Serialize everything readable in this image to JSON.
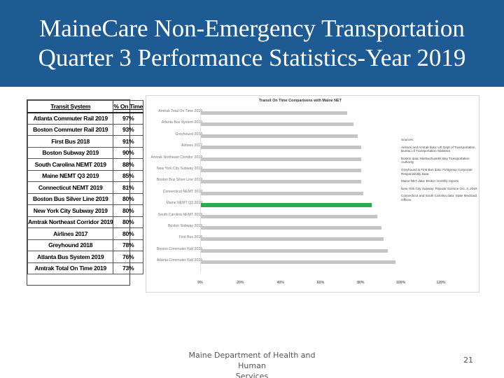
{
  "title": {
    "line1": "MaineCare Non-Emergency Transportation",
    "line2": "Quarter 3 Performance Statistics-Year 2019",
    "background_color": "#1e5b92"
  },
  "table": {
    "headers": [
      "Transit System",
      "% On Time"
    ],
    "rows": [
      {
        "system": "Atlanta Commuter Rail 2019",
        "pct": "97%"
      },
      {
        "system": "Boston Commuter Rail 2019",
        "pct": "93%"
      },
      {
        "system": "First Bus 2018",
        "pct": "91%"
      },
      {
        "system": "Boston Subway 2019",
        "pct": "90%"
      },
      {
        "system": "South Carolina NEMT 2019",
        "pct": "88%"
      },
      {
        "system": "Maine NEMT Q3 2019",
        "pct": "85%"
      },
      {
        "system": "Connecticut NEMT 2019",
        "pct": "81%"
      },
      {
        "system": "Boston Bus Silver Line 2019",
        "pct": "80%"
      },
      {
        "system": "New York City Subway 2019",
        "pct": "80%"
      },
      {
        "system": "Amtrak Northeast Corridor 2019",
        "pct": "80%"
      },
      {
        "system": "Airlines 2017",
        "pct": "80%"
      },
      {
        "system": "Greyhound 2018",
        "pct": "78%"
      },
      {
        "system": "Atlanta Bus System 2019",
        "pct": "76%"
      },
      {
        "system": "Amtrak Total On Time 2019",
        "pct": "73%"
      }
    ]
  },
  "chart_data": {
    "type": "bar",
    "orientation": "horizontal",
    "title": "Transit On Time Comparisons with Maine NET",
    "categories": [
      "Amtrak Total On Time 2019",
      "Atlanta Bus System 2019",
      "Greyhound 2018",
      "Airlines 2017",
      "Amtrak Northeast Corridor 2019",
      "New York City Subway 2019",
      "Boston Bus Silver Line 2019",
      "Connecticut NEMT 2019",
      "Maine NEMT Q3 2019",
      "South Carolina NEMT 2019",
      "Boston Subway 2019",
      "First Bus 2018",
      "Boston Commuter Rail 2019",
      "Atlanta Commuter Rail 2019"
    ],
    "values": [
      73,
      76,
      78,
      80,
      80,
      80,
      80,
      81,
      85,
      88,
      90,
      91,
      93,
      97
    ],
    "highlight_index": 8,
    "xlim": [
      0,
      120
    ],
    "xticks": [
      "0%",
      "20%",
      "40%",
      "60%",
      "80%",
      "100%",
      "120%"
    ],
    "bar_color": "#c5c5c5",
    "highlight_color": "#2cab4a",
    "grid": false
  },
  "sources": {
    "heading": "Sources:",
    "items": [
      "Airlines and Amtrak data: US Dept of Transportation, Bureau of Transportation Statistics",
      "Boston data: Massachusetts Bay Transportation Authority",
      "Greyhound & First Bus data: Firstgroup Corporate Responsibility Data",
      "Maine NET data: Broker monthly reports",
      "New York City Subway: Popular Science Oct. 3, 2019",
      "Connecticut and South Carolina data: State Medicaid Offices"
    ]
  },
  "footer": {
    "text_line1": "Maine Department of Health and Human",
    "text_line2": "Services",
    "page_number": "21"
  }
}
